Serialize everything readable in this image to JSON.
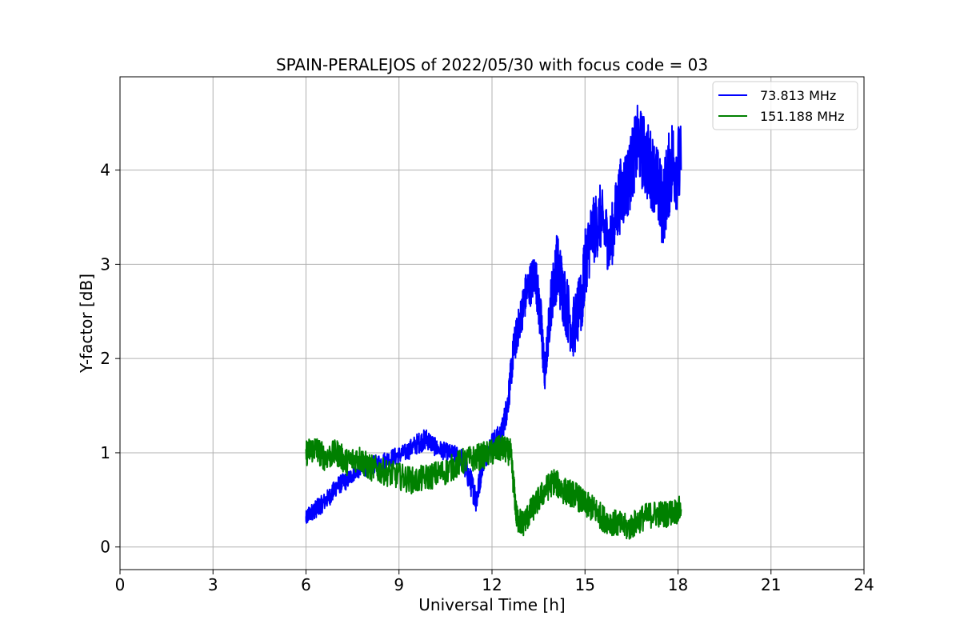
{
  "chart_data": {
    "type": "line",
    "title": "SPAIN-PERALEJOS of 2022/05/30 with focus code = 03",
    "xlabel": "Universal Time [h]",
    "ylabel": "Y-factor [dB]",
    "xlim": [
      0,
      24
    ],
    "ylim": [
      -0.24,
      4.99
    ],
    "xticks": [
      0,
      3,
      6,
      9,
      12,
      15,
      18,
      21,
      24
    ],
    "yticks": [
      0,
      1,
      2,
      3,
      4
    ],
    "grid": true,
    "legend_position": "top-right",
    "series": [
      {
        "name": "73.813 MHz",
        "color": "#0000ff",
        "x": [
          6.0,
          6.1,
          6.3,
          6.5,
          6.8,
          7.0,
          7.3,
          7.6,
          8.0,
          8.4,
          8.8,
          9.2,
          9.6,
          9.9,
          10.2,
          10.6,
          11.0,
          11.3,
          11.5,
          11.7,
          12.0,
          12.3,
          12.5,
          12.7,
          12.9,
          13.1,
          13.4,
          13.6,
          13.7,
          13.9,
          14.1,
          14.3,
          14.6,
          14.9,
          15.0,
          15.2,
          15.5,
          15.8,
          16.1,
          16.4,
          16.7,
          17.0,
          17.3,
          17.5,
          17.8,
          18.1
        ],
        "y": [
          0.3,
          0.35,
          0.4,
          0.45,
          0.55,
          0.65,
          0.7,
          0.8,
          0.85,
          0.9,
          0.95,
          1.0,
          1.1,
          1.15,
          1.05,
          1.0,
          0.95,
          0.7,
          0.5,
          0.9,
          1.1,
          1.2,
          1.5,
          2.1,
          2.4,
          2.7,
          2.9,
          2.3,
          1.8,
          2.6,
          3.0,
          2.7,
          2.3,
          2.6,
          3.0,
          3.3,
          3.5,
          3.2,
          3.7,
          3.9,
          4.3,
          4.1,
          3.9,
          3.6,
          4.1,
          4.0
        ],
        "amp": [
          0.1,
          0.1,
          0.12,
          0.12,
          0.12,
          0.12,
          0.12,
          0.1,
          0.12,
          0.12,
          0.12,
          0.12,
          0.14,
          0.14,
          0.12,
          0.12,
          0.14,
          0.18,
          0.18,
          0.15,
          0.15,
          0.15,
          0.2,
          0.25,
          0.25,
          0.3,
          0.3,
          0.35,
          0.2,
          0.35,
          0.45,
          0.45,
          0.4,
          0.45,
          0.45,
          0.45,
          0.45,
          0.4,
          0.5,
          0.5,
          0.5,
          0.55,
          0.5,
          0.55,
          0.6,
          0.6
        ]
      },
      {
        "name": "151.188 MHz",
        "color": "#008000",
        "x": [
          6.0,
          6.3,
          6.6,
          7.0,
          7.3,
          7.7,
          8.0,
          8.5,
          9.0,
          9.5,
          10.0,
          10.5,
          11.0,
          11.5,
          12.0,
          12.3,
          12.6,
          12.8,
          13.0,
          13.3,
          13.7,
          14.0,
          14.3,
          14.7,
          15.0,
          15.3,
          15.6,
          16.0,
          16.4,
          16.8,
          17.2,
          17.6,
          18.1
        ],
        "y": [
          1.0,
          1.05,
          0.95,
          1.0,
          0.9,
          0.95,
          0.85,
          0.8,
          0.75,
          0.7,
          0.75,
          0.8,
          0.9,
          0.95,
          1.0,
          1.05,
          1.0,
          0.3,
          0.25,
          0.4,
          0.6,
          0.7,
          0.6,
          0.55,
          0.45,
          0.4,
          0.3,
          0.25,
          0.2,
          0.3,
          0.35,
          0.35,
          0.4
        ]
      }
    ]
  }
}
